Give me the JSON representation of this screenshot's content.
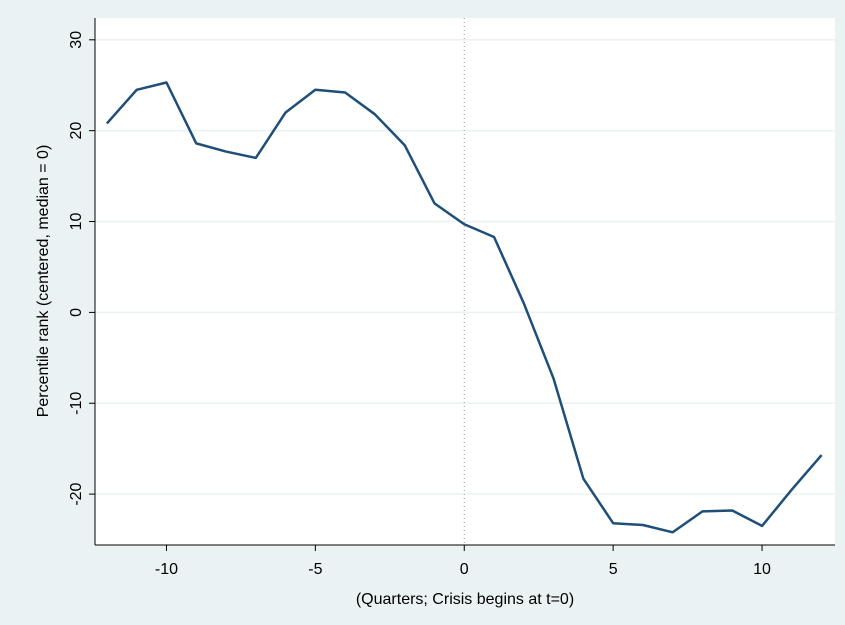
{
  "chart_data": {
    "type": "line",
    "x_label": "(Quarters; Crisis begins at t=0)",
    "y_label": "Percentile rank (centered, median = 0)",
    "x": [
      -12,
      -11,
      -10,
      -9,
      -8,
      -7,
      -6,
      -5,
      -4,
      -3,
      -2,
      -1,
      0,
      1,
      2,
      3,
      4,
      5,
      6,
      7,
      8,
      9,
      10,
      11,
      12
    ],
    "series": [
      {
        "color": "#1f4e79",
        "values": [
          20.8,
          24.5,
          25.3,
          18.6,
          17.7,
          17.0,
          22.0,
          24.5,
          24.2,
          21.8,
          18.4,
          12.0,
          9.7,
          8.3,
          1.0,
          -7.3,
          -18.3,
          -23.2,
          -23.4,
          -24.2,
          -21.9,
          -21.8,
          -23.5,
          -19.5,
          -15.7
        ]
      }
    ],
    "xlim": [
      -12.4,
      12.45
    ],
    "ylim": [
      -25.6,
      32.4
    ],
    "xticks": [
      -10,
      -5,
      0,
      5,
      10
    ],
    "yticks": [
      -20,
      -10,
      0,
      10,
      20,
      30
    ],
    "xline": 0,
    "grid": true
  }
}
